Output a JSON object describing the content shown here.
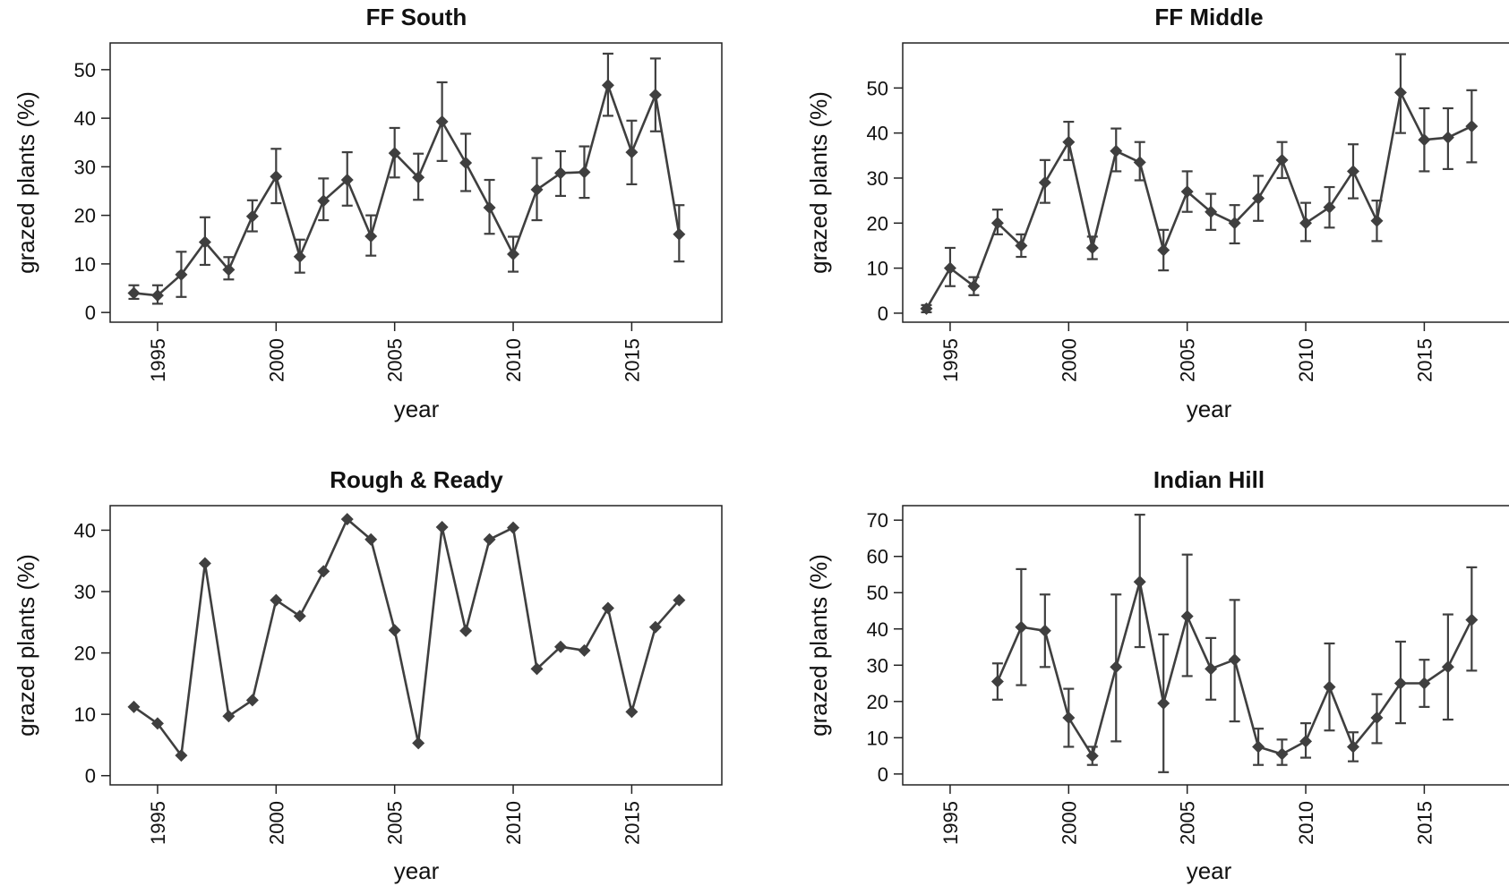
{
  "colors": {
    "line": "#3f3f3f",
    "axis": "#222222",
    "background": "#ffffff"
  },
  "chart_data": [
    {
      "type": "line",
      "title": "FF South",
      "xlabel": "year",
      "ylabel": "grazed plants (%)",
      "xlim": [
        1993,
        2018.8
      ],
      "ylim": [
        -2,
        55.5
      ],
      "xticks": [
        1995,
        2000,
        2005,
        2010,
        2015
      ],
      "yticks": [
        0,
        10,
        20,
        30,
        40,
        50
      ],
      "error_bars": true,
      "series": [
        {
          "x": [
            1994,
            1995,
            1996,
            1997,
            1998,
            1999,
            2000,
            2001,
            2002,
            2003,
            2004,
            2005,
            2006,
            2007,
            2008,
            2009,
            2010,
            2011,
            2012,
            2013,
            2014,
            2015,
            2016,
            2017
          ],
          "y": [
            4,
            3.5,
            7.8,
            14.5,
            8.8,
            19.8,
            28,
            11.5,
            23,
            27.3,
            15.7,
            32.8,
            27.8,
            39.3,
            30.8,
            21.6,
            12,
            25.3,
            28.7,
            28.9,
            46.8,
            33,
            44.8,
            16.1
          ],
          "err_low": [
            2.8,
            1.8,
            3.2,
            9.8,
            6.8,
            16.7,
            22.5,
            8.2,
            19,
            22,
            11.7,
            27.8,
            23.2,
            31.2,
            25,
            16.2,
            8.4,
            19,
            24,
            23.6,
            40.5,
            26.4,
            37.3,
            10.5
          ],
          "err_high": [
            5.6,
            5.6,
            12.5,
            19.6,
            11.4,
            23.1,
            33.7,
            15,
            27.6,
            33,
            20,
            38,
            32.7,
            47.4,
            36.8,
            27.3,
            15.6,
            31.8,
            33.2,
            34.2,
            53.3,
            39.5,
            52.3,
            22.1
          ]
        }
      ]
    },
    {
      "type": "line",
      "title": "FF Middle",
      "xlabel": "year",
      "ylabel": "grazed plants (%)",
      "xlim": [
        1993,
        2018.8
      ],
      "ylim": [
        -2,
        60
      ],
      "xticks": [
        1995,
        2000,
        2005,
        2010,
        2015
      ],
      "yticks": [
        0,
        10,
        20,
        30,
        40,
        50
      ],
      "error_bars": true,
      "series": [
        {
          "x": [
            1994,
            1995,
            1996,
            1997,
            1998,
            1999,
            2000,
            2001,
            2002,
            2003,
            2004,
            2005,
            2006,
            2007,
            2008,
            2009,
            2010,
            2011,
            2012,
            2013,
            2014,
            2015,
            2016,
            2017
          ],
          "y": [
            1,
            10,
            6,
            20,
            15,
            29,
            38,
            14.5,
            36,
            33.5,
            14,
            27,
            22.5,
            20,
            25.5,
            34,
            20,
            23.5,
            31.5,
            20.5,
            49,
            38.5,
            39,
            41.5
          ],
          "err_low": [
            0.2,
            6,
            4,
            17.5,
            12.5,
            24.5,
            34,
            12,
            31.5,
            29.5,
            9.5,
            22.5,
            18.5,
            15.5,
            20.5,
            30,
            16,
            19,
            25.5,
            16,
            40,
            31.5,
            32,
            33.5
          ],
          "err_high": [
            1.8,
            14.5,
            8,
            23,
            17.5,
            34,
            42.5,
            17,
            41,
            38,
            18.5,
            31.5,
            26.5,
            24,
            30.5,
            38,
            24.5,
            28,
            37.5,
            25,
            57.5,
            45.5,
            45.5,
            49.5
          ]
        }
      ]
    },
    {
      "type": "line",
      "title": "Rough & Ready",
      "xlabel": "year",
      "ylabel": "grazed plants (%)",
      "xlim": [
        1993,
        2018.8
      ],
      "ylim": [
        -1.5,
        44
      ],
      "xticks": [
        1995,
        2000,
        2005,
        2010,
        2015
      ],
      "yticks": [
        0,
        10,
        20,
        30,
        40
      ],
      "error_bars": false,
      "series": [
        {
          "x": [
            1994,
            1995,
            1996,
            1997,
            1998,
            1999,
            2000,
            2001,
            2002,
            2003,
            2004,
            2005,
            2006,
            2007,
            2008,
            2009,
            2010,
            2011,
            2012,
            2013,
            2014,
            2015,
            2016,
            2017
          ],
          "y": [
            11.2,
            8.5,
            3.3,
            34.6,
            9.7,
            12.3,
            28.6,
            26,
            33.3,
            41.8,
            38.5,
            23.7,
            5.3,
            40.5,
            23.6,
            38.5,
            40.4,
            17.4,
            21,
            20.4,
            27.3,
            10.4,
            24.2,
            28.6
          ]
        }
      ]
    },
    {
      "type": "line",
      "title": "Indian Hill",
      "xlabel": "year",
      "ylabel": "grazed plants (%)",
      "xlim": [
        1993,
        2018.8
      ],
      "ylim": [
        -3,
        74
      ],
      "xticks": [
        1995,
        2000,
        2005,
        2010,
        2015
      ],
      "yticks": [
        0,
        10,
        20,
        30,
        40,
        50,
        60,
        70
      ],
      "error_bars": true,
      "series": [
        {
          "x": [
            1997,
            1998,
            1999,
            2000,
            2001,
            2002,
            2003,
            2004,
            2005,
            2006,
            2007,
            2008,
            2009,
            2010,
            2011,
            2012,
            2013,
            2014,
            2015,
            2016,
            2017
          ],
          "y": [
            25.5,
            40.5,
            39.5,
            15.5,
            5,
            29.5,
            53,
            19.5,
            43.5,
            29,
            31.5,
            7.5,
            5.5,
            9,
            24,
            7.5,
            15.5,
            25,
            25,
            29.5,
            42.5
          ],
          "err_low": [
            20.5,
            24.5,
            29.5,
            7.5,
            2.5,
            9,
            35,
            0.5,
            27,
            20.5,
            14.5,
            2.5,
            2.5,
            4.5,
            12,
            3.5,
            8.5,
            14,
            18.5,
            15,
            28.5
          ],
          "err_high": [
            30.5,
            56.5,
            49.5,
            23.5,
            7.5,
            49.5,
            71.5,
            38.5,
            60.5,
            37.5,
            48,
            12.5,
            9.5,
            14,
            36,
            11.5,
            22,
            36.5,
            31.5,
            44,
            57
          ]
        }
      ]
    }
  ]
}
